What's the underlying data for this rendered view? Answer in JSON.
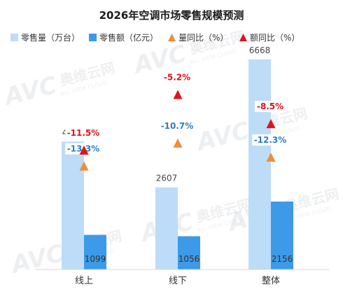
{
  "chart_data": {
    "type": "bar",
    "title": "2026年空调市场零售规模预测",
    "categories": [
      "线上",
      "线下",
      "整体"
    ],
    "series": [
      {
        "name": "零售量（万台）",
        "kind": "bar",
        "axis": "left",
        "color": "#bddcf8",
        "values": [
          4061,
          2607,
          6668
        ]
      },
      {
        "name": "零售额（亿元）",
        "kind": "bar",
        "axis": "left",
        "color": "#3d9ae8",
        "values": [
          1099,
          1056,
          2156
        ]
      },
      {
        "name": "量同比（%）",
        "kind": "marker",
        "axis": "right",
        "color": "#f08c3a",
        "values": [
          -13.3,
          -10.7,
          -12.3
        ],
        "labels": [
          "-13.3%",
          "-10.7%",
          "-12.3%"
        ],
        "label_color": "#2d7fc0"
      },
      {
        "name": "额同比（%）",
        "kind": "marker",
        "axis": "right",
        "color": "#e0131a",
        "values": [
          -11.5,
          -5.2,
          -8.5
        ],
        "labels": [
          "-11.5%",
          "-5.2%",
          "-8.5%"
        ],
        "label_color": "#e0131a"
      }
    ],
    "bar_value_labels": [
      [
        "4061",
        "2607",
        "6668"
      ],
      [
        "1099",
        "1056",
        "2156"
      ]
    ],
    "ylim_left": [
      0,
      7000
    ],
    "ylim_right": [
      -25,
      0
    ],
    "legend_position": "top",
    "grid": false,
    "watermark": "AVC 奥维云网 ALL VIEW CLOUD"
  }
}
